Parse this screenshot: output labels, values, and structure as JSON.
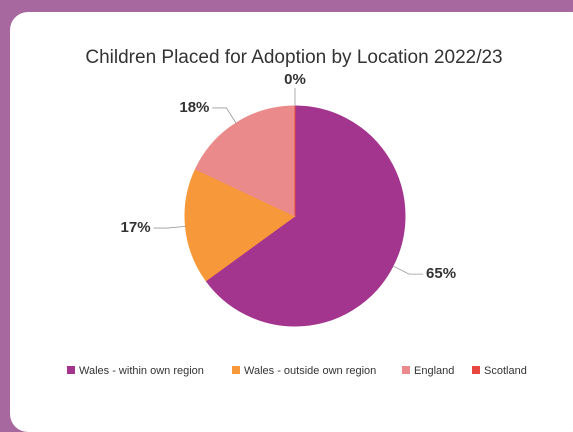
{
  "chart_data": {
    "type": "pie",
    "title": "Children Placed for Adoption by Location 2022/23",
    "categories": [
      "Wales - within own region",
      "Wales - outside own region",
      "England",
      "Scotland"
    ],
    "values": [
      65,
      17,
      18,
      0
    ],
    "value_labels": [
      "65%",
      "17%",
      "18%",
      "0%"
    ],
    "colors": [
      "#a3358e",
      "#f7993a",
      "#eb8a8a",
      "#e8473f"
    ],
    "legend": "bottom"
  }
}
